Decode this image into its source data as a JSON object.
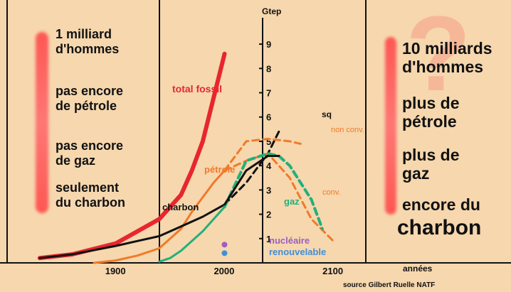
{
  "left_panel": {
    "lines": [
      [
        "1 milliard",
        "d'hommes"
      ],
      [
        "pas encore",
        "de pétrole"
      ],
      [
        "pas encore",
        "de gaz"
      ],
      [
        "seulement",
        "du charbon"
      ]
    ]
  },
  "right_panel": {
    "question_mark": "?",
    "lines": [
      [
        "10 milliards",
        "d'hommes"
      ],
      [
        "plus de",
        "pétrole"
      ],
      [
        "plus de",
        "gaz"
      ],
      [
        "encore du"
      ]
    ],
    "big_word": "charbon"
  },
  "colors": {
    "background": "#f6d7ae",
    "total_fossil": "#e8262d",
    "petrole": "#f07a2a",
    "charbon": "#111111",
    "gaz": "#22b07a",
    "non_conv": "#f07a2a",
    "nucleaire": "#9b5fc0",
    "renouvelable": "#3f8fd8"
  },
  "chart_data": {
    "type": "line",
    "xlabel": "années",
    "ylabel": "Gtep",
    "xlim": [
      1800,
      2130
    ],
    "ylim": [
      0,
      9.5
    ],
    "x_ticks": [
      1900,
      2000,
      2100
    ],
    "y_ticks": [
      1,
      2,
      3,
      4,
      5,
      6,
      7,
      8,
      9
    ],
    "series": [
      {
        "name": "total fossil",
        "style": "solid",
        "x": [
          1830,
          1860,
          1900,
          1920,
          1940,
          1960,
          1970,
          1980,
          1990,
          2000
        ],
        "y": [
          0.2,
          0.35,
          0.8,
          1.3,
          1.8,
          2.8,
          3.8,
          5.0,
          6.8,
          8.6
        ]
      },
      {
        "name": "pétrole",
        "style": "solid",
        "x": [
          1880,
          1900,
          1920,
          1940,
          1960,
          1970,
          1980,
          1990,
          2000
        ],
        "y": [
          0.0,
          0.1,
          0.3,
          0.6,
          1.4,
          2.1,
          2.7,
          3.3,
          3.8
        ]
      },
      {
        "name": "charbon",
        "style": "solid",
        "x": [
          1830,
          1860,
          1900,
          1920,
          1940,
          1960,
          1980,
          2000
        ],
        "y": [
          0.2,
          0.35,
          0.7,
          0.9,
          1.1,
          1.5,
          1.9,
          2.4
        ]
      },
      {
        "name": "gaz",
        "style": "solid",
        "x": [
          1940,
          1950,
          1960,
          1970,
          1980,
          1990,
          2000
        ],
        "y": [
          0.05,
          0.2,
          0.5,
          0.9,
          1.3,
          1.8,
          2.3
        ]
      },
      {
        "name": "sq",
        "style": "dashed",
        "x": [
          2000,
          2020,
          2040,
          2050
        ],
        "y": [
          2.4,
          3.3,
          4.5,
          5.4
        ]
      },
      {
        "name": "non conv.",
        "style": "dashed",
        "x": [
          2000,
          2020,
          2040,
          2060,
          2070
        ],
        "y": [
          3.8,
          5.0,
          5.1,
          5.0,
          4.9
        ]
      },
      {
        "name": "conv.",
        "style": "dashed",
        "x": [
          2000,
          2020,
          2040,
          2060,
          2080,
          2100
        ],
        "y": [
          3.8,
          4.2,
          4.5,
          3.5,
          1.8,
          0.9
        ]
      },
      {
        "name": "gaz (projection)",
        "style": "dashed",
        "x": [
          2000,
          2020,
          2040,
          2050,
          2060,
          2080,
          2090
        ],
        "y": [
          2.3,
          4.2,
          4.5,
          4.4,
          4.0,
          2.6,
          1.4
        ]
      },
      {
        "name": "charbon (projection)",
        "style": "solid",
        "x": [
          2000,
          2020,
          2040,
          2050
        ],
        "y": [
          2.4,
          3.8,
          4.4,
          4.4
        ]
      }
    ],
    "labels": {
      "total_fossil": "total fossil",
      "petrole": "pétrole",
      "charbon": "charbon",
      "gaz": "gaz",
      "sq": "sq",
      "non_conv": "non conv.",
      "conv": "conv.",
      "nucleaire": "nucléaire",
      "renouvelable": "renouvelable"
    },
    "points": [
      {
        "name": "nucléaire",
        "x": 2000,
        "y": 0.75
      },
      {
        "name": "renouvelable",
        "x": 2000,
        "y": 0.4
      }
    ],
    "source": "source Gilbert Ruelle  NATF"
  }
}
